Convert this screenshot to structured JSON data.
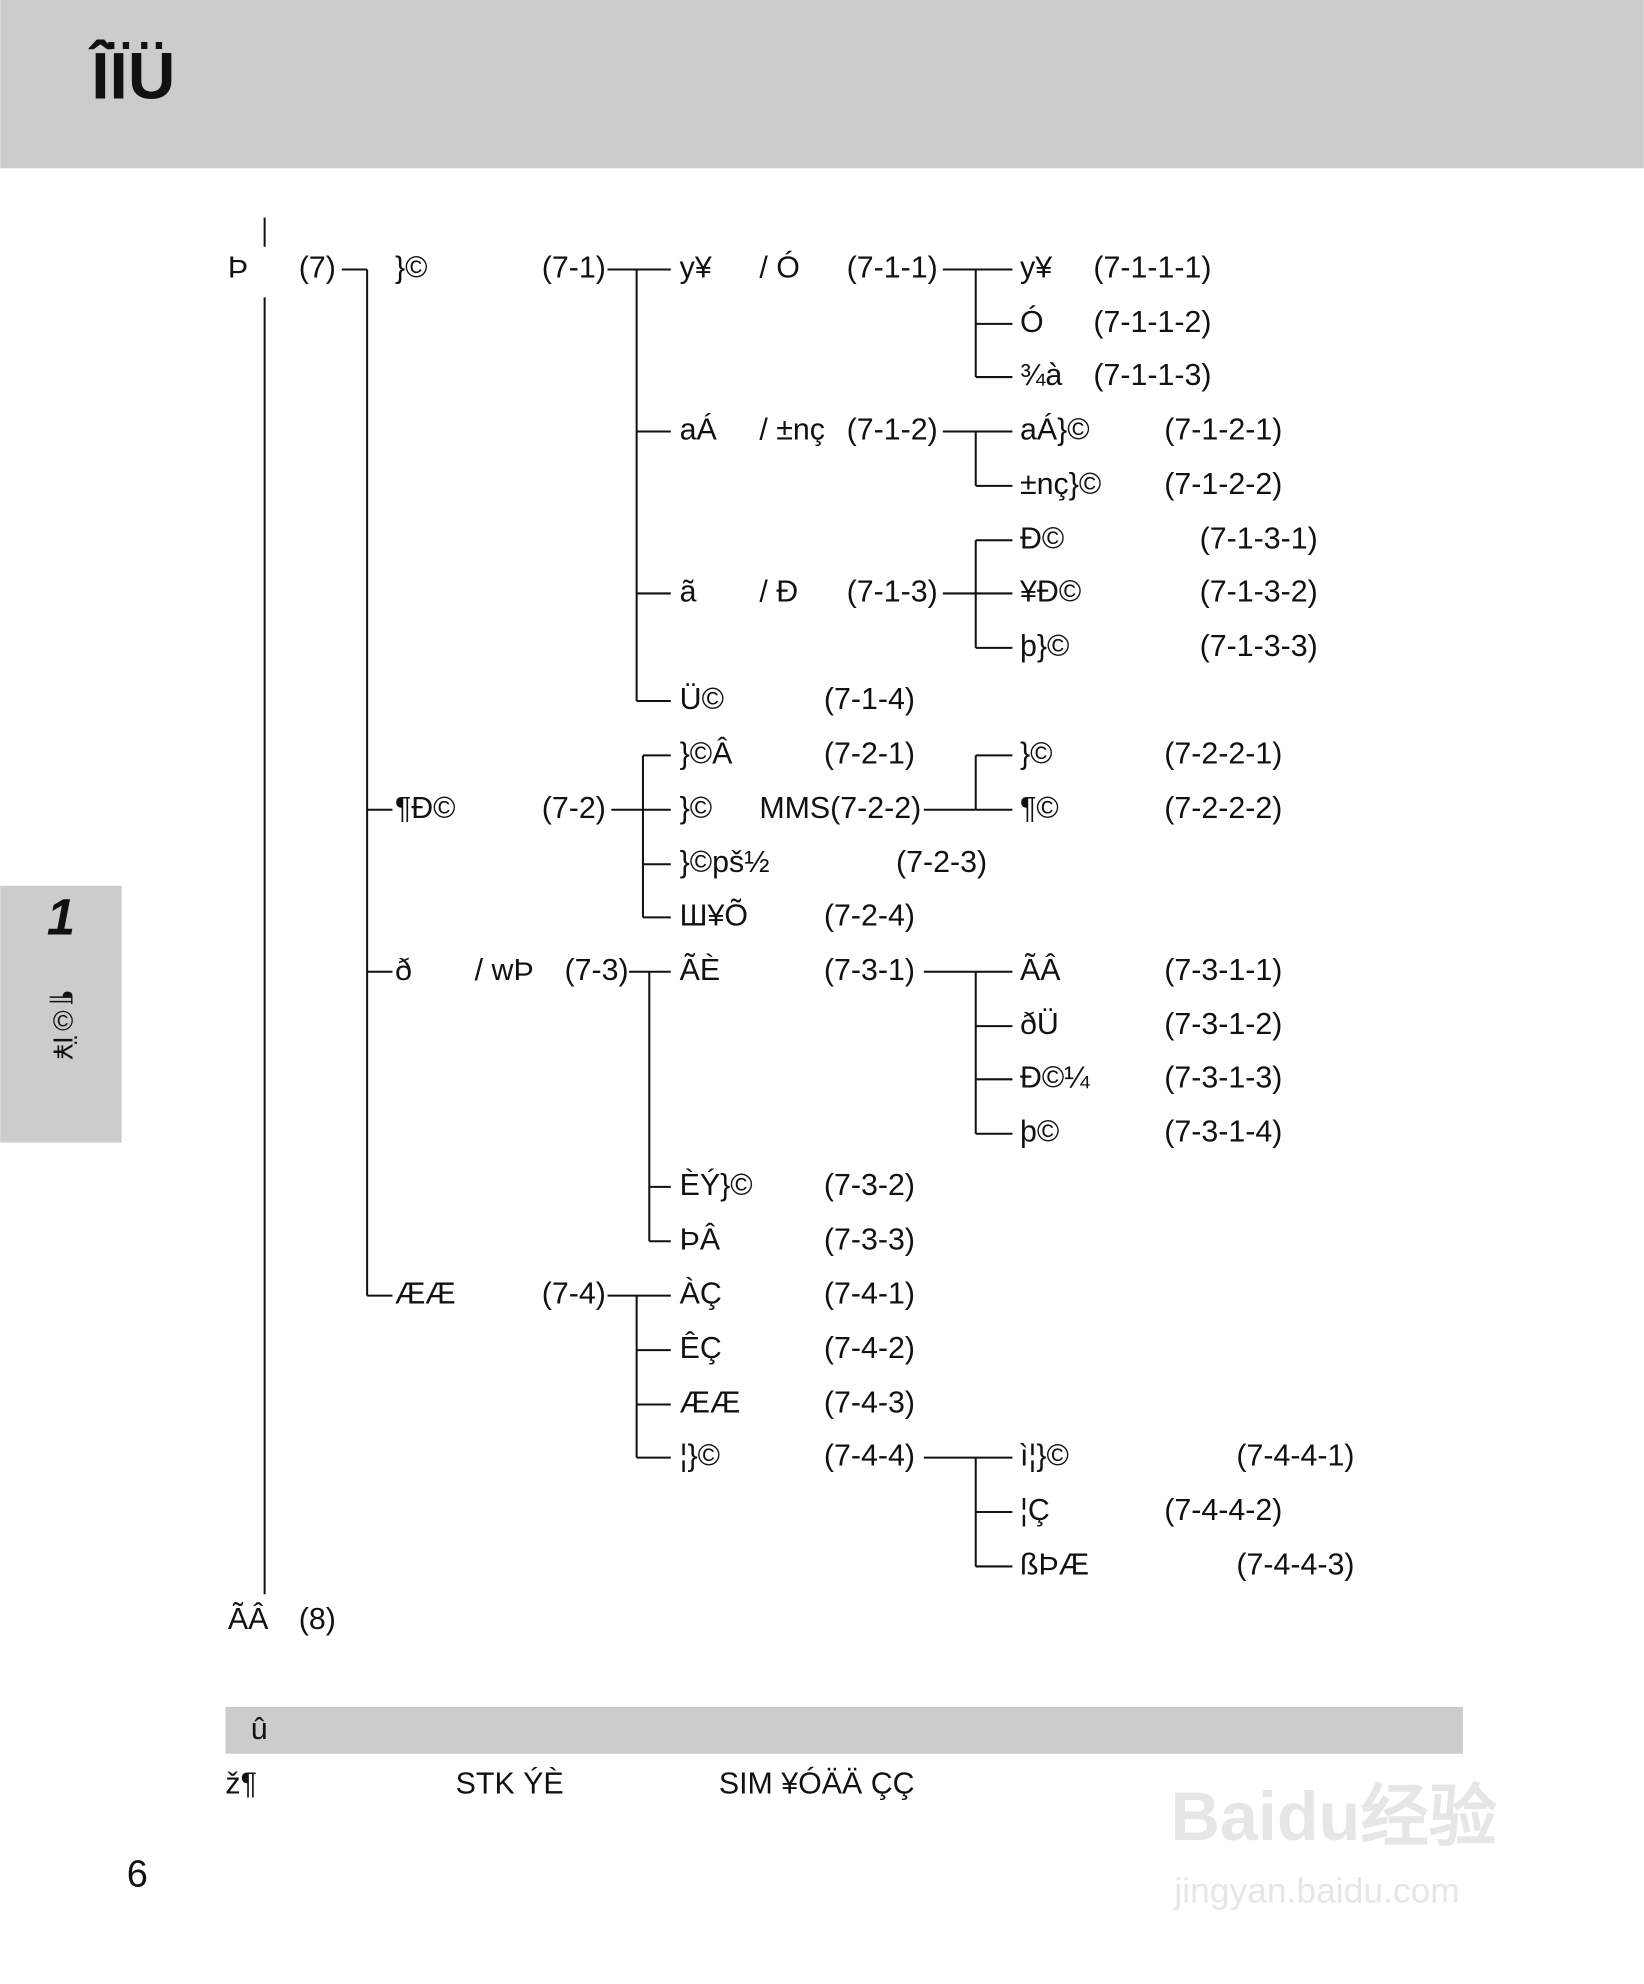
{
  "header": {
    "title": "ÎÏÜ"
  },
  "side_tab": {
    "number": "1",
    "label": "¶©Ï¥"
  },
  "tree": {
    "nodes": [
      {
        "label": "Þ",
        "code": "(7)"
      },
      {
        "label": "}©",
        "code": "(7-1)"
      },
      {
        "label": "y¥",
        "suffix": "/ Ó",
        "code": "(7-1-1)"
      },
      {
        "label": "y¥",
        "code": "(7-1-1-1)"
      },
      {
        "label": "Ó",
        "code": "(7-1-1-2)"
      },
      {
        "label": "¾à",
        "code": "(7-1-1-3)"
      },
      {
        "label": "aÁ",
        "suffix": "/ ±nç",
        "code": "(7-1-2)"
      },
      {
        "label": "aÁ}©",
        "code": "(7-1-2-1)"
      },
      {
        "label": "±nç}©",
        "code": "(7-1-2-2)"
      },
      {
        "label": "ã",
        "suffix": "/ Ð",
        "code": "(7-1-3)"
      },
      {
        "label": "Ð©",
        "code": "(7-1-3-1)"
      },
      {
        "label": "¥Ð©",
        "code": "(7-1-3-2)"
      },
      {
        "label": "þ}©",
        "code": "(7-1-3-3)"
      },
      {
        "label": "Ü©",
        "code": "(7-1-4)"
      },
      {
        "label": "¶Ð©",
        "code": "(7-2)"
      },
      {
        "label": "}©Â",
        "code": "(7-2-1)"
      },
      {
        "label": "}©",
        "code": "MMS(7-2-2)"
      },
      {
        "label": "}©",
        "code": "(7-2-2-1)"
      },
      {
        "label": "¶©",
        "code": "(7-2-2-2)"
      },
      {
        "label": "}©pš½",
        "code": "(7-2-3)"
      },
      {
        "label": "Ш¥Õ",
        "code": "(7-2-4)"
      },
      {
        "label": "ð",
        "suffix": "/ wÞ",
        "code": "(7-3)"
      },
      {
        "label": "ÃÈ",
        "code": "(7-3-1)"
      },
      {
        "label": "ÃÂ",
        "code": "(7-3-1-1)"
      },
      {
        "label": "ðÜ",
        "code": "(7-3-1-2)"
      },
      {
        "label": "Ð©¼",
        "code": "(7-3-1-3)"
      },
      {
        "label": "þ©",
        "code": "(7-3-1-4)"
      },
      {
        "label": "ÈÝ}©",
        "code": "(7-3-2)"
      },
      {
        "label": "ÞÂ",
        "code": "(7-3-3)"
      },
      {
        "label": "ÆÆ",
        "code": "(7-4)"
      },
      {
        "label": "ÀÇ",
        "code": "(7-4-1)"
      },
      {
        "label": "ÊÇ",
        "code": "(7-4-2)"
      },
      {
        "label": "ÆÆ",
        "code": "(7-4-3)"
      },
      {
        "label": "¦}©",
        "code": "(7-4-4)"
      },
      {
        "label": "ì¦}©",
        "code": "(7-4-4-1)"
      },
      {
        "label": "¦Ç",
        "code": "(7-4-4-2)"
      },
      {
        "label": "ßÞÆ",
        "code": "(7-4-4-3)"
      },
      {
        "label": "ÃÂ",
        "code": "(8)"
      }
    ]
  },
  "note": {
    "title": "û",
    "items": [
      "ž¶",
      "STK ÝÈ",
      "SIM ¥ÓÄÄ ÇÇ"
    ]
  },
  "page_number": "6",
  "watermark": {
    "title": "Baidu经验",
    "url": "jingyan.baidu.com"
  }
}
